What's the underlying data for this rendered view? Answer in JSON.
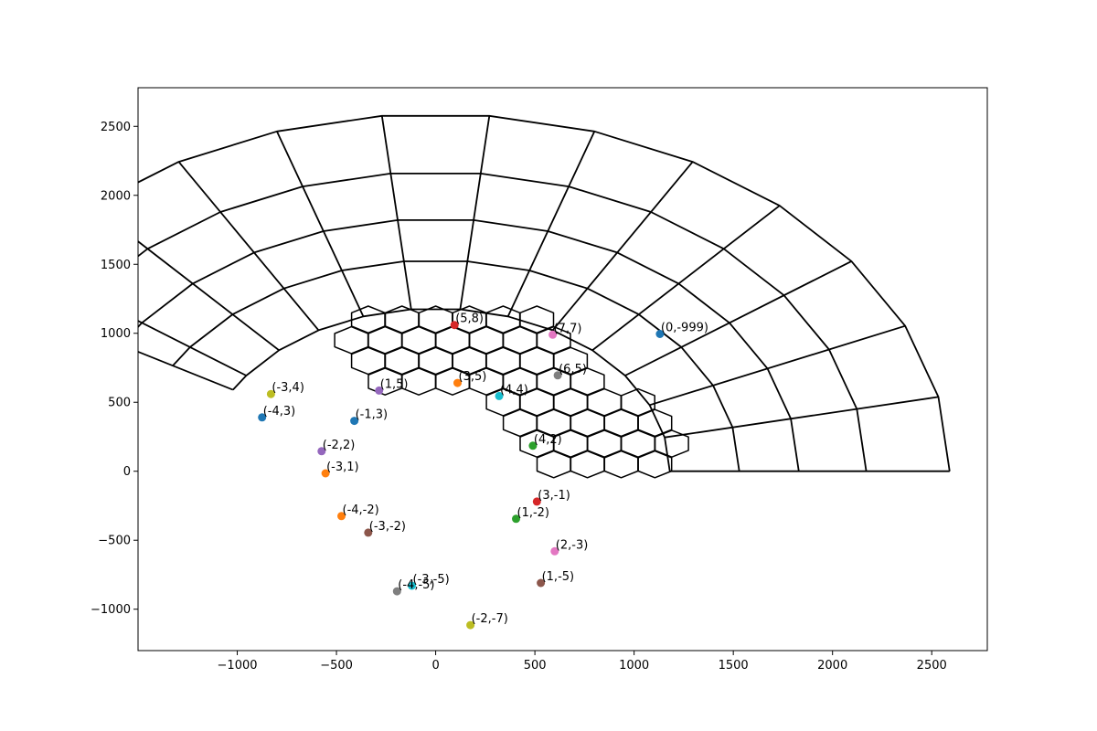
{
  "chart_data": {
    "type": "scatter",
    "title": "",
    "xlabel": "",
    "ylabel": "",
    "xlim": [
      -1500,
      2780
    ],
    "ylim": [
      -1300,
      2780
    ],
    "grid": false,
    "x_ticks": [
      -1000,
      -500,
      0,
      500,
      1000,
      1500,
      2000,
      2500
    ],
    "y_ticks": [
      -1000,
      -500,
      0,
      500,
      1000,
      1500,
      2000,
      2500
    ],
    "x_tick_labels": [
      "−1000",
      "−500",
      "0",
      "500",
      "1000",
      "1500",
      "2000",
      "2500"
    ],
    "y_tick_labels": [
      "−1000",
      "−500",
      "0",
      "500",
      "1000",
      "1500",
      "2000",
      "2500"
    ],
    "polar_grid": {
      "radii": [
        1180,
        1530,
        1830,
        2170,
        2590
      ],
      "angles_deg": [
        0,
        12,
        24,
        36,
        48,
        60,
        72,
        84,
        96,
        108,
        120,
        132,
        144,
        150
      ]
    },
    "hex_grid": {
      "cell_radius": 97,
      "centers": [
        [
          -340,
          1100
        ],
        [
          -170,
          1100
        ],
        [
          0,
          1100
        ],
        [
          170,
          1100
        ],
        [
          340,
          1100
        ],
        [
          510,
          1100
        ],
        [
          -425,
          950
        ],
        [
          -255,
          950
        ],
        [
          -85,
          950
        ],
        [
          85,
          950
        ],
        [
          255,
          950
        ],
        [
          425,
          950
        ],
        [
          595,
          950
        ],
        [
          -340,
          800
        ],
        [
          -170,
          800
        ],
        [
          0,
          800
        ],
        [
          170,
          800
        ],
        [
          340,
          800
        ],
        [
          510,
          800
        ],
        [
          680,
          800
        ],
        [
          -255,
          650
        ],
        [
          -85,
          650
        ],
        [
          85,
          650
        ],
        [
          255,
          650
        ],
        [
          425,
          650
        ],
        [
          595,
          650
        ],
        [
          765,
          650
        ],
        [
          340,
          500
        ],
        [
          510,
          500
        ],
        [
          680,
          500
        ],
        [
          850,
          500
        ],
        [
          1020,
          500
        ],
        [
          425,
          350
        ],
        [
          595,
          350
        ],
        [
          765,
          350
        ],
        [
          935,
          350
        ],
        [
          1105,
          350
        ],
        [
          510,
          200
        ],
        [
          680,
          200
        ],
        [
          850,
          200
        ],
        [
          1020,
          200
        ],
        [
          1190,
          200
        ],
        [
          595,
          50
        ],
        [
          765,
          50
        ],
        [
          935,
          50
        ],
        [
          1105,
          50
        ]
      ]
    },
    "points": [
      {
        "label": "(5,8)",
        "x": 95,
        "y": 1060,
        "color": "#d62728"
      },
      {
        "label": "(7,7)",
        "x": 590,
        "y": 990,
        "color": "#e377c2"
      },
      {
        "label": "(0,-999)",
        "x": 1130,
        "y": 995,
        "color": "#1f77b4"
      },
      {
        "label": "(6,5)",
        "x": 615,
        "y": 695,
        "color": "#7f7f7f"
      },
      {
        "label": "(3,5)",
        "x": 110,
        "y": 640,
        "color": "#ff7f0e"
      },
      {
        "label": "(4,4)",
        "x": 320,
        "y": 545,
        "color": "#17becf"
      },
      {
        "label": "(1,5)",
        "x": -285,
        "y": 585,
        "color": "#9467bd"
      },
      {
        "label": "(-3,4)",
        "x": -830,
        "y": 560,
        "color": "#bcbd22"
      },
      {
        "label": "(-4,3)",
        "x": -875,
        "y": 390,
        "color": "#1f77b4"
      },
      {
        "label": "(-1,3)",
        "x": -410,
        "y": 365,
        "color": "#1f77b4"
      },
      {
        "label": "(4,2)",
        "x": 490,
        "y": 185,
        "color": "#2ca02c"
      },
      {
        "label": "(-2,2)",
        "x": -575,
        "y": 145,
        "color": "#9467bd"
      },
      {
        "label": "(-3,1)",
        "x": -555,
        "y": -15,
        "color": "#ff7f0e"
      },
      {
        "label": "(3,-1)",
        "x": 510,
        "y": -220,
        "color": "#d62728"
      },
      {
        "label": "(1,-2)",
        "x": 405,
        "y": -345,
        "color": "#2ca02c"
      },
      {
        "label": "(-4,-2)",
        "x": -475,
        "y": -325,
        "color": "#ff7f0e"
      },
      {
        "label": "(-3,-2)",
        "x": -340,
        "y": -445,
        "color": "#8c564b"
      },
      {
        "label": "(2,-3)",
        "x": 600,
        "y": -580,
        "color": "#e377c2"
      },
      {
        "label": "(1,-5)",
        "x": 530,
        "y": -810,
        "color": "#8c564b"
      },
      {
        "label": "(-3,-5)",
        "x": -120,
        "y": -830,
        "color": "#17becf"
      },
      {
        "label": "(-4,-5)",
        "x": -195,
        "y": -870,
        "color": "#7f7f7f"
      },
      {
        "label": "(-2,-7)",
        "x": 175,
        "y": -1115,
        "color": "#bcbd22"
      }
    ]
  }
}
